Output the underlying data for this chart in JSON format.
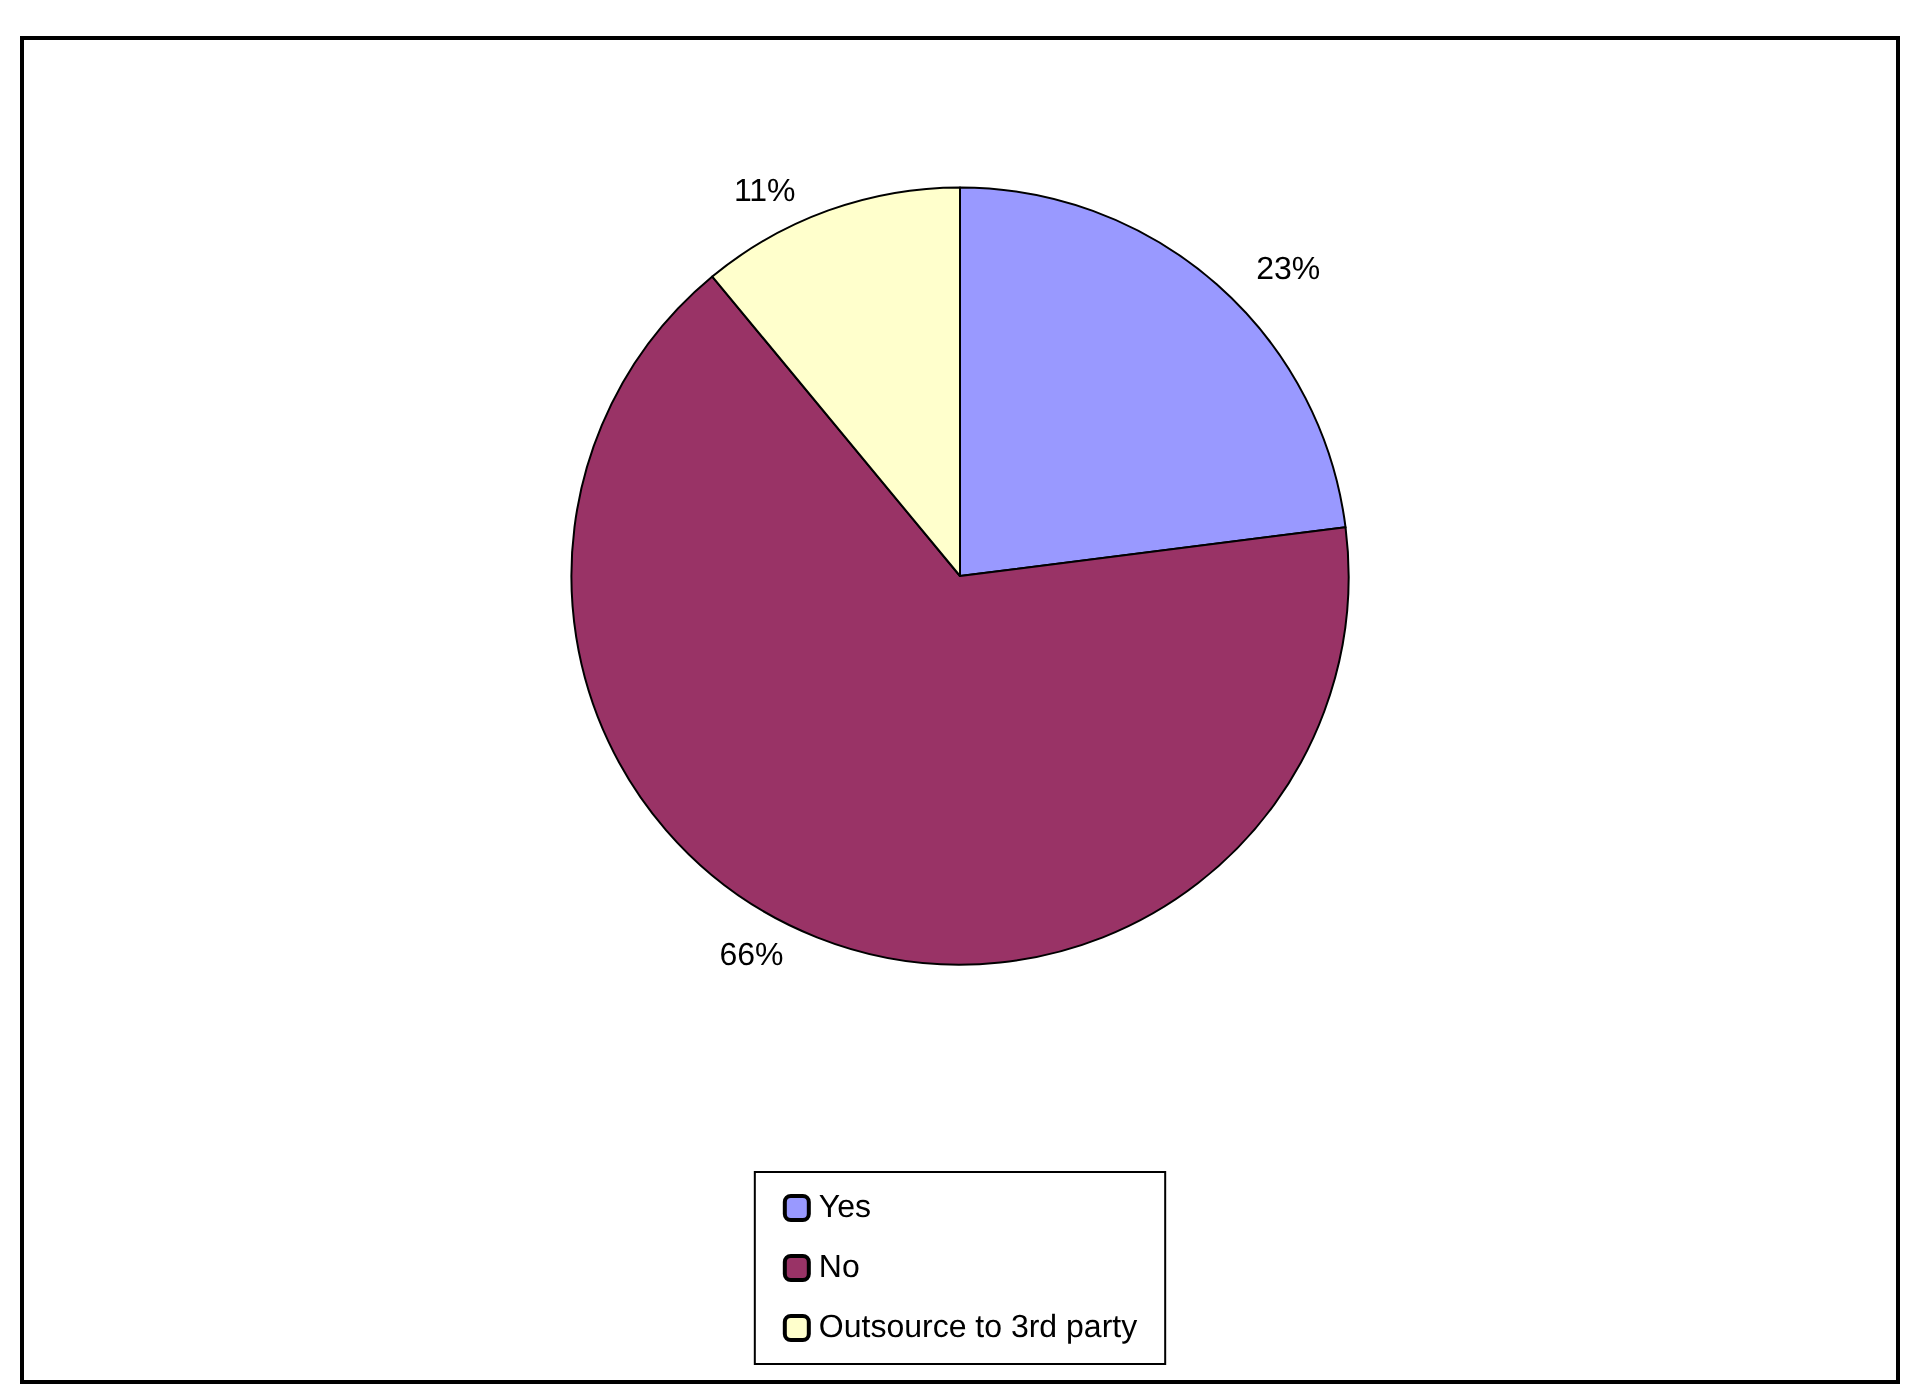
{
  "chart_data": {
    "type": "pie",
    "categories": [
      "Yes",
      "No",
      "Outsource to 3rd party"
    ],
    "values": [
      23,
      66,
      11
    ],
    "colors": [
      "#9999ff",
      "#993366",
      "#ffffcc"
    ],
    "value_labels": [
      "23%",
      "66%",
      "11%"
    ],
    "legend": "bottom"
  }
}
